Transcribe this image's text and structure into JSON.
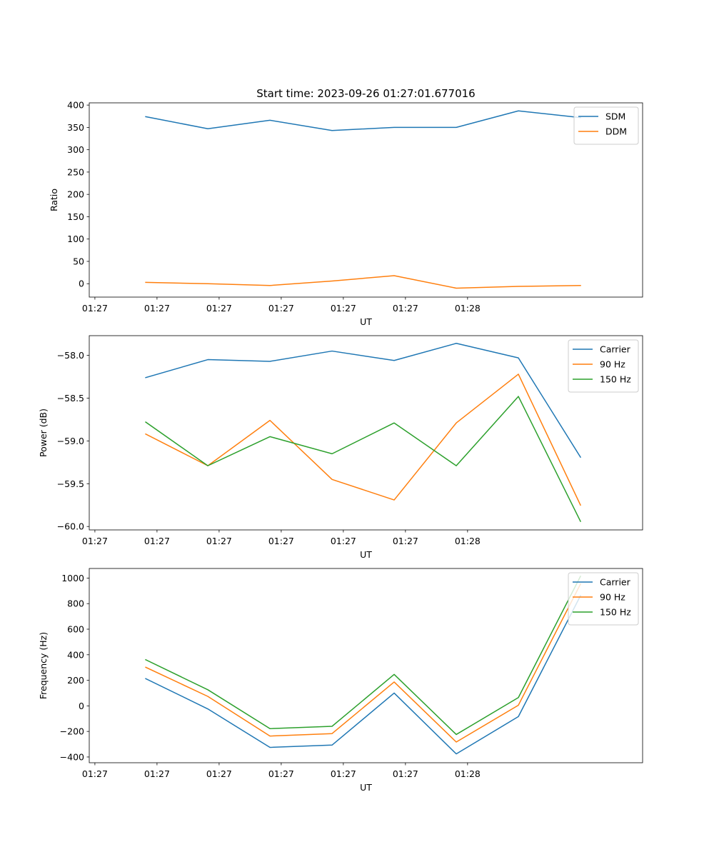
{
  "figure_title": "Start time: 2023-09-26 01:27:01.677016",
  "colors": {
    "c0": "#1f77b4",
    "c1": "#ff7f0e",
    "c2": "#2ca02c"
  },
  "chart_data": [
    {
      "type": "line",
      "title": "Start time: 2023-09-26 01:27:01.677016",
      "xlabel": "UT",
      "ylabel": "Ratio",
      "x_tick_labels": [
        "01:27",
        "01:27",
        "01:27",
        "01:27",
        "01:27",
        "01:27",
        "01:28"
      ],
      "xlim": [
        0,
        9.8
      ],
      "ylim": [
        -30,
        405
      ],
      "yticks": [
        0,
        50,
        100,
        150,
        200,
        250,
        300,
        350,
        400
      ],
      "ytick_labels": [
        "0",
        "50",
        "100",
        "150",
        "200",
        "250",
        "300",
        "350",
        "400"
      ],
      "legend_position": "top-right",
      "series": [
        {
          "name": "SDM",
          "color": "#1f77b4",
          "x": [
            1,
            2.1,
            3.2,
            4.3,
            5.4,
            6.5,
            7.6,
            8.7
          ],
          "values": [
            374,
            347,
            366,
            343,
            350,
            350,
            387,
            372
          ]
        },
        {
          "name": "DDM",
          "color": "#ff7f0e",
          "x": [
            1,
            2.1,
            3.2,
            4.3,
            5.4,
            6.5,
            7.6,
            8.7
          ],
          "values": [
            3,
            0,
            -4,
            6,
            18,
            -10,
            -6,
            -4
          ]
        }
      ]
    },
    {
      "type": "line",
      "xlabel": "UT",
      "ylabel": "Power (dB)",
      "x_tick_labels": [
        "01:27",
        "01:27",
        "01:27",
        "01:27",
        "01:27",
        "01:27",
        "01:28"
      ],
      "xlim": [
        0,
        9.8
      ],
      "ylim": [
        -60.04,
        -57.77
      ],
      "yticks": [
        -60.0,
        -59.5,
        -59.0,
        -58.5,
        -58.0
      ],
      "ytick_labels": [
        "−60.0",
        "−59.5",
        "−59.0",
        "−58.5",
        "−58.0"
      ],
      "legend_position": "top-right",
      "series": [
        {
          "name": "Carrier",
          "color": "#1f77b4",
          "x": [
            1,
            2.1,
            3.2,
            4.3,
            5.4,
            6.5,
            7.6,
            8.7
          ],
          "values": [
            -58.26,
            -58.05,
            -58.07,
            -57.95,
            -58.06,
            -57.86,
            -58.03,
            -59.19
          ]
        },
        {
          "name": "90 Hz",
          "color": "#ff7f0e",
          "x": [
            1,
            2.1,
            3.2,
            4.3,
            5.4,
            6.5,
            7.6,
            8.7
          ],
          "values": [
            -58.92,
            -59.29,
            -58.76,
            -59.45,
            -59.69,
            -58.79,
            -58.22,
            -59.75
          ]
        },
        {
          "name": "150 Hz",
          "color": "#2ca02c",
          "x": [
            1,
            2.1,
            3.2,
            4.3,
            5.4,
            6.5,
            7.6,
            8.7
          ],
          "values": [
            -58.78,
            -59.29,
            -58.95,
            -59.15,
            -58.79,
            -59.29,
            -58.48,
            -59.94
          ]
        }
      ]
    },
    {
      "type": "line",
      "xlabel": "UT",
      "ylabel": "Frequency (Hz)",
      "x_tick_labels": [
        "01:27",
        "01:27",
        "01:27",
        "01:27",
        "01:27",
        "01:27",
        "01:28"
      ],
      "xlim": [
        0,
        9.8
      ],
      "ylim": [
        -445,
        1075
      ],
      "yticks": [
        -400,
        -200,
        0,
        200,
        400,
        600,
        800,
        1000
      ],
      "ytick_labels": [
        "−400",
        "−200",
        "0",
        "200",
        "400",
        "600",
        "800",
        "1000"
      ],
      "legend_position": "top-right",
      "series": [
        {
          "name": "Carrier",
          "color": "#1f77b4",
          "x": [
            1,
            2.1,
            3.2,
            4.3,
            5.4,
            6.5,
            7.6,
            8.7
          ],
          "values": [
            213,
            -24,
            -325,
            -307,
            100,
            -376,
            -84,
            862
          ]
        },
        {
          "name": "90 Hz",
          "color": "#ff7f0e",
          "x": [
            1,
            2.1,
            3.2,
            4.3,
            5.4,
            6.5,
            7.6,
            8.7
          ],
          "values": [
            302,
            74,
            -236,
            -217,
            187,
            -283,
            5,
            953
          ]
        },
        {
          "name": "150 Hz",
          "color": "#2ca02c",
          "x": [
            1,
            2.1,
            3.2,
            4.3,
            5.4,
            6.5,
            7.6,
            8.7
          ],
          "values": [
            361,
            126,
            -178,
            -160,
            246,
            -224,
            65,
            1014
          ]
        }
      ]
    }
  ]
}
